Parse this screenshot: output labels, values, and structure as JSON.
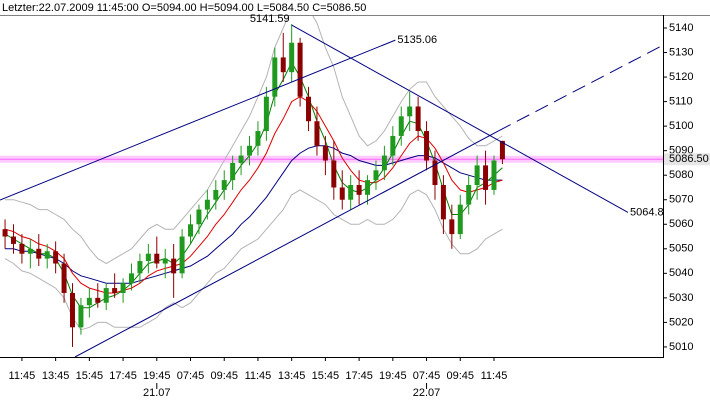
{
  "chart_data": {
    "type": "candlestick",
    "title": "Letzter:22.07.2009 11:45:00 O=5094.00 H=5094.00 L=5084.50 C=5086.50",
    "x": [
      0,
      1,
      2,
      3,
      4,
      5,
      6,
      7,
      8,
      9,
      10,
      11,
      12,
      13,
      14,
      15,
      16,
      17,
      18,
      19,
      20,
      21,
      22,
      23,
      24,
      25,
      26,
      27,
      28,
      29,
      30,
      31,
      32,
      33,
      34,
      35,
      36,
      37,
      38,
      39,
      40,
      41,
      42,
      43,
      44,
      45,
      46,
      47,
      48,
      49,
      50,
      51,
      52,
      53,
      54,
      55,
      56,
      57,
      58,
      59
    ],
    "open": [
      5058,
      5055,
      5052,
      5048,
      5050,
      5046,
      5049,
      5044,
      5032,
      5018,
      5027,
      5030,
      5028,
      5034,
      5032,
      5036,
      5040,
      5045,
      5048,
      5044,
      5046,
      5040,
      5055,
      5060,
      5066,
      5070,
      5074,
      5078,
      5085,
      5088,
      5092,
      5098,
      5112,
      5128,
      5122,
      5134,
      5112,
      5102,
      5092,
      5086,
      5075,
      5070,
      5076,
      5072,
      5078,
      5082,
      5088,
      5096,
      5104,
      5108,
      5098,
      5086,
      5076,
      5062,
      5056,
      5068,
      5076,
      5084,
      5074,
      5094
    ],
    "high": [
      5062,
      5060,
      5056,
      5054,
      5056,
      5052,
      5053,
      5048,
      5036,
      5030,
      5034,
      5036,
      5036,
      5040,
      5038,
      5044,
      5048,
      5052,
      5055,
      5050,
      5052,
      5058,
      5064,
      5068,
      5074,
      5078,
      5082,
      5088,
      5092,
      5096,
      5102,
      5116,
      5132,
      5138,
      5141.59,
      5136,
      5116,
      5108,
      5096,
      5094,
      5082,
      5080,
      5082,
      5080,
      5086,
      5092,
      5100,
      5108,
      5114,
      5112,
      5102,
      5090,
      5080,
      5068,
      5072,
      5080,
      5088,
      5090,
      5088,
      5094
    ],
    "low": [
      5050,
      5048,
      5044,
      5042,
      5043,
      5042,
      5040,
      5028,
      5010,
      5015,
      5022,
      5026,
      5025,
      5030,
      5028,
      5033,
      5036,
      5040,
      5042,
      5038,
      5030,
      5038,
      5052,
      5056,
      5062,
      5066,
      5070,
      5074,
      5080,
      5084,
      5088,
      5094,
      5108,
      5118,
      5118,
      5108,
      5098,
      5088,
      5080,
      5070,
      5066,
      5066,
      5068,
      5068,
      5074,
      5078,
      5084,
      5092,
      5098,
      5094,
      5082,
      5070,
      5056,
      5050,
      5054,
      5064,
      5070,
      5068,
      5072,
      5084.5
    ],
    "close": [
      5055,
      5052,
      5048,
      5050,
      5046,
      5049,
      5044,
      5032,
      5018,
      5027,
      5030,
      5028,
      5034,
      5032,
      5036,
      5040,
      5045,
      5048,
      5044,
      5046,
      5040,
      5055,
      5060,
      5066,
      5070,
      5074,
      5078,
      5085,
      5088,
      5092,
      5098,
      5112,
      5128,
      5122,
      5134,
      5112,
      5102,
      5092,
      5086,
      5075,
      5070,
      5076,
      5072,
      5078,
      5082,
      5088,
      5096,
      5104,
      5108,
      5098,
      5086,
      5076,
      5062,
      5056,
      5068,
      5076,
      5084,
      5074,
      5086,
      5086.5
    ],
    "up_color": "#1f9a1f",
    "down_color": "#8b0000",
    "series": [
      {
        "color": "#b4b4b4",
        "values": [
          5070,
          5070,
          5069,
          5068,
          5066,
          5066,
          5064,
          5062,
          5058,
          5055,
          5050,
          5046,
          5044,
          5046,
          5048,
          5050,
          5054,
          5058,
          5060,
          5058,
          5058,
          5062,
          5066,
          5070,
          5074,
          5080,
          5086,
          5092,
          5098,
          5104,
          5112,
          5120,
          5132,
          5140,
          5148,
          5150,
          5148,
          5142,
          5132,
          5124,
          5112,
          5104,
          5096,
          5092,
          5094,
          5098,
          5104,
          5110,
          5115,
          5118,
          5118,
          5112,
          5108,
          5104,
          5100,
          5095,
          5092,
          5092,
          5094,
          5096
        ]
      },
      {
        "color": "#b4b4b4",
        "values": [
          5046,
          5044,
          5041,
          5040,
          5038,
          5036,
          5034,
          5030,
          5022,
          5017,
          5018,
          5020,
          5020,
          5018,
          5018,
          5018,
          5018,
          5020,
          5022,
          5026,
          5028,
          5026,
          5028,
          5032,
          5036,
          5040,
          5042,
          5046,
          5050,
          5052,
          5054,
          5058,
          5062,
          5066,
          5072,
          5074,
          5072,
          5070,
          5068,
          5064,
          5062,
          5060,
          5060,
          5062,
          5060,
          5060,
          5062,
          5066,
          5072,
          5074,
          5072,
          5066,
          5058,
          5052,
          5048,
          5048,
          5050,
          5054,
          5056,
          5058
        ]
      },
      {
        "color": "#000080",
        "values": [
          5050,
          5050,
          5049,
          5049,
          5048,
          5047,
          5046,
          5044,
          5041,
          5039,
          5038,
          5037,
          5036,
          5036,
          5036,
          5036,
          5037,
          5038,
          5039,
          5040,
          5041,
          5042,
          5043,
          5045,
          5047,
          5050,
          5053,
          5056,
          5060,
          5063,
          5067,
          5071,
          5076,
          5081,
          5086,
          5089,
          5091,
          5092,
          5092,
          5091,
          5089,
          5088,
          5086,
          5085,
          5084,
          5084,
          5085,
          5086,
          5087,
          5088,
          5088,
          5087,
          5085,
          5083,
          5081,
          5080,
          5079,
          5078,
          5078,
          5078
        ]
      },
      {
        "color": "#e00000",
        "values": [
          5058,
          5057,
          5055,
          5054,
          5052,
          5051,
          5049,
          5046,
          5040,
          5036,
          5034,
          5033,
          5032,
          5032,
          5033,
          5034,
          5036,
          5039,
          5041,
          5042,
          5043,
          5044,
          5047,
          5051,
          5055,
          5060,
          5064,
          5069,
          5074,
          5078,
          5083,
          5089,
          5097,
          5103,
          5110,
          5112,
          5110,
          5106,
          5100,
          5094,
          5087,
          5082,
          5078,
          5077,
          5077,
          5079,
          5083,
          5088,
          5093,
          5096,
          5095,
          5091,
          5085,
          5078,
          5074,
          5073,
          5074,
          5075,
          5077,
          5078
        ]
      },
      {
        "color": "#008000",
        "values": [
          5056,
          5054,
          5052,
          5050,
          5048,
          5048,
          5046,
          5040,
          5031,
          5026,
          5026,
          5028,
          5030,
          5031,
          5033,
          5036,
          5040,
          5044,
          5045,
          5046,
          5044,
          5047,
          5052,
          5058,
          5064,
          5069,
          5074,
          5079,
          5084,
          5088,
          5093,
          5101,
          5113,
          5119,
          5126,
          5120,
          5112,
          5102,
          5094,
          5084,
          5077,
          5074,
          5073,
          5075,
          5078,
          5083,
          5089,
          5096,
          5102,
          5101,
          5094,
          5085,
          5074,
          5064,
          5064,
          5068,
          5075,
          5077,
          5080,
          5083
        ]
      }
    ],
    "trend_lines": [
      {
        "start": [
          -0.6,
          5069.9
        ],
        "end": [
          46.3,
          5135.06
        ],
        "color": "#000080",
        "dashed": false
      },
      {
        "start": [
          8.3,
          5005.9
        ],
        "end": [
          58.5,
          5098
        ],
        "color": "#000080",
        "dashed": false
      },
      {
        "start": [
          58.5,
          5098
        ],
        "end": [
          78.05,
          5133
        ],
        "color": "#000080",
        "dashed": true
      },
      {
        "start": [
          34,
          5141.2
        ],
        "end": [
          73.9,
          5064.8
        ],
        "color": "#000080",
        "dashed": false
      }
    ],
    "annotations": [
      {
        "x": 34,
        "value": 5141.59,
        "anchor": "end"
      },
      {
        "x": 46.3,
        "value": 5135.06,
        "anchor": "start"
      },
      {
        "x": 73.9,
        "value": 5064.8,
        "anchor": "start"
      }
    ],
    "last_price": {
      "value": 5086.5,
      "label": "5086.50"
    },
    "last_price_color": "#ff66ff",
    "xlim": [
      -0.6,
      78.05
    ],
    "ylim": [
      5005.9,
      5145.3
    ],
    "yticks": [
      5010,
      5020,
      5030,
      5040,
      5050,
      5060,
      5070,
      5080,
      5090,
      5100,
      5110,
      5120,
      5130,
      5140
    ],
    "xticks": [
      {
        "value": 2,
        "label": "11:45"
      },
      {
        "value": 6,
        "label": "13:45"
      },
      {
        "value": 10,
        "label": "15:45"
      },
      {
        "value": 14,
        "label": "17:45"
      },
      {
        "value": 18,
        "label": "19:45"
      },
      {
        "value": 22,
        "label": "07:45"
      },
      {
        "value": 26,
        "label": "09:45"
      },
      {
        "value": 30,
        "label": "11:45"
      },
      {
        "value": 34,
        "label": "13:45"
      },
      {
        "value": 38,
        "label": "15:45"
      },
      {
        "value": 42,
        "label": "17:45"
      },
      {
        "value": 46,
        "label": "19:45"
      },
      {
        "value": 50,
        "label": "07:45"
      },
      {
        "value": 54,
        "label": "09:45"
      },
      {
        "value": 58,
        "label": "11:45"
      }
    ],
    "date_ticks": [
      {
        "value": 18,
        "label": "21.07"
      },
      {
        "value": 50,
        "label": "22.07"
      }
    ]
  }
}
